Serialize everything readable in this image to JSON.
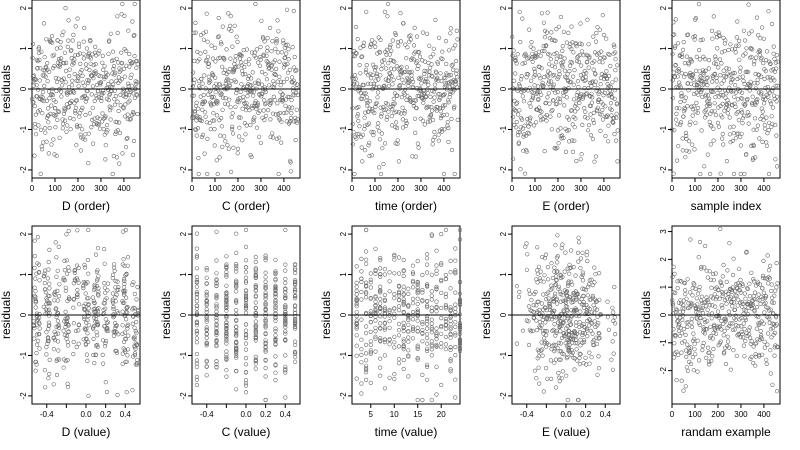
{
  "figure": {
    "layout": {
      "rows": 2,
      "cols": 5
    },
    "point_color": "#6a6a6a",
    "line_color": "#000000"
  },
  "chart_data": [
    {
      "type": "scatter",
      "xlabel": "D (order)",
      "ylabel": "residuals",
      "xlim": [
        0,
        470
      ],
      "ylim": [
        -2.2,
        2.2
      ],
      "xticks": [
        0,
        100,
        200,
        300,
        400
      ],
      "xtick_labels": [
        "0",
        "100",
        "200",
        "300",
        "400"
      ],
      "yticks": [
        -2,
        -1,
        0,
        1,
        2
      ],
      "ytick_labels": [
        "-2",
        "-1",
        "0",
        "1",
        "2"
      ],
      "hline": 0,
      "n_points": 460,
      "x_kind": "index"
    },
    {
      "type": "scatter",
      "xlabel": "C (order)",
      "ylabel": "residuals",
      "xlim": [
        0,
        470
      ],
      "ylim": [
        -2.2,
        2.2
      ],
      "xticks": [
        0,
        100,
        200,
        300,
        400
      ],
      "xtick_labels": [
        "0",
        "100",
        "200",
        "300",
        "400"
      ],
      "yticks": [
        -2,
        -1,
        0,
        1,
        2
      ],
      "ytick_labels": [
        "-2",
        "-1",
        "0",
        "1",
        "2"
      ],
      "hline": 0,
      "n_points": 460,
      "x_kind": "index"
    },
    {
      "type": "scatter",
      "xlabel": "time (order)",
      "ylabel": "residuals",
      "xlim": [
        0,
        470
      ],
      "ylim": [
        -2.2,
        2.2
      ],
      "xticks": [
        0,
        100,
        200,
        300,
        400
      ],
      "xtick_labels": [
        "0",
        "100",
        "200",
        "300",
        "400"
      ],
      "yticks": [
        -2,
        -1,
        0,
        1,
        2
      ],
      "ytick_labels": [
        "-2",
        "-1",
        "0",
        "1",
        "2"
      ],
      "hline": 0,
      "n_points": 460,
      "x_kind": "index"
    },
    {
      "type": "scatter",
      "xlabel": "E (order)",
      "ylabel": "residuals",
      "xlim": [
        0,
        470
      ],
      "ylim": [
        -2.2,
        2.2
      ],
      "xticks": [
        0,
        100,
        200,
        300,
        400
      ],
      "xtick_labels": [
        "0",
        "100",
        "200",
        "300",
        "400"
      ],
      "yticks": [
        -2,
        -1,
        0,
        1,
        2
      ],
      "ytick_labels": [
        "-2",
        "-1",
        "0",
        "1",
        "2"
      ],
      "hline": 0,
      "n_points": 460,
      "x_kind": "index"
    },
    {
      "type": "scatter",
      "xlabel": "sample index",
      "ylabel": "residuals",
      "xlim": [
        0,
        470
      ],
      "ylim": [
        -2.2,
        2.2
      ],
      "xticks": [
        0,
        100,
        200,
        300,
        400
      ],
      "xtick_labels": [
        "0",
        "100",
        "200",
        "300",
        "400"
      ],
      "yticks": [
        -2,
        -1,
        0,
        1,
        2
      ],
      "ytick_labels": [
        "-2",
        "-1",
        "0",
        "1",
        "2"
      ],
      "hline": 0,
      "n_points": 460,
      "x_kind": "index"
    },
    {
      "type": "scatter",
      "xlabel": "D (value)",
      "ylabel": "residuals",
      "xlim": [
        -0.55,
        0.55
      ],
      "ylim": [
        -2.2,
        2.2
      ],
      "xticks": [
        -0.4,
        -0.2,
        0.0,
        0.2,
        0.4
      ],
      "xtick_labels": [
        "-0.4",
        "",
        "0.0",
        "0.2",
        "0.4"
      ],
      "yticks": [
        -2,
        -1,
        0,
        1,
        2
      ],
      "ytick_labels": [
        "-2",
        "-1",
        "0",
        "1",
        "2"
      ],
      "hline": 0,
      "n_points": 460,
      "x_kind": "jitter",
      "x_levels": [
        -0.5,
        -0.4,
        -0.3,
        -0.2,
        -0.1,
        0.0,
        0.1,
        0.2,
        0.3,
        0.4,
        0.5
      ]
    },
    {
      "type": "scatter",
      "xlabel": "C (value)",
      "ylabel": "residuals",
      "xlim": [
        -0.55,
        0.55
      ],
      "ylim": [
        -2.2,
        2.2
      ],
      "xticks": [
        -0.4,
        -0.2,
        0.0,
        0.2,
        0.4
      ],
      "xtick_labels": [
        "-0.4",
        "",
        "0.0",
        "0.2",
        "0.4"
      ],
      "yticks": [
        -2,
        -1,
        0,
        1,
        2
      ],
      "ytick_labels": [
        "-2",
        "-1",
        "0",
        "1",
        "2"
      ],
      "hline": 0,
      "n_points": 460,
      "x_kind": "discrete",
      "x_levels": [
        -0.5,
        -0.4,
        -0.3,
        -0.2,
        -0.1,
        0.0,
        0.1,
        0.2,
        0.3,
        0.4,
        0.5
      ]
    },
    {
      "type": "scatter",
      "xlabel": "time (value)",
      "ylabel": "residuals",
      "xlim": [
        1,
        24
      ],
      "ylim": [
        -2.2,
        2.2
      ],
      "xticks": [
        5,
        10,
        15,
        20
      ],
      "xtick_labels": [
        "5",
        "10",
        "15",
        "20"
      ],
      "yticks": [
        -2,
        -1,
        0,
        1,
        2
      ],
      "ytick_labels": [
        "-2",
        "-1",
        "0",
        "1",
        "2"
      ],
      "hline": 0,
      "n_points": 460,
      "x_kind": "discrete",
      "x_levels": [
        2,
        3,
        4,
        5,
        6,
        7,
        8,
        9,
        10,
        11,
        12,
        13,
        14,
        15,
        16,
        17,
        18,
        19,
        20,
        21,
        22,
        23,
        24
      ]
    },
    {
      "type": "scatter",
      "xlabel": "E (value)",
      "ylabel": "residuals",
      "xlim": [
        -0.55,
        0.55
      ],
      "ylim": [
        -2.2,
        2.2
      ],
      "xticks": [
        -0.4,
        -0.2,
        0.0,
        0.2,
        0.4
      ],
      "xtick_labels": [
        "-0.4",
        "",
        "0.0",
        "0.2",
        "0.4"
      ],
      "yticks": [
        -2,
        -1,
        0,
        1,
        2
      ],
      "ytick_labels": [
        "-2",
        "-1",
        "0",
        "1",
        "2"
      ],
      "hline": 0,
      "n_points": 460,
      "x_kind": "gaussian"
    },
    {
      "type": "scatter",
      "xlabel": "randam example",
      "ylabel": "residuals",
      "xlim": [
        0,
        470
      ],
      "ylim": [
        -3.2,
        3.2
      ],
      "xticks": [
        0,
        100,
        200,
        300,
        400
      ],
      "xtick_labels": [
        "0",
        "100",
        "200",
        "300",
        "400"
      ],
      "yticks": [
        -2,
        -1,
        0,
        1,
        2,
        3
      ],
      "ytick_labels": [
        "-2",
        "-1",
        "0",
        "1",
        "2",
        "3"
      ],
      "hline": 0,
      "n_points": 460,
      "x_kind": "index",
      "y_sd": 1.0
    }
  ]
}
